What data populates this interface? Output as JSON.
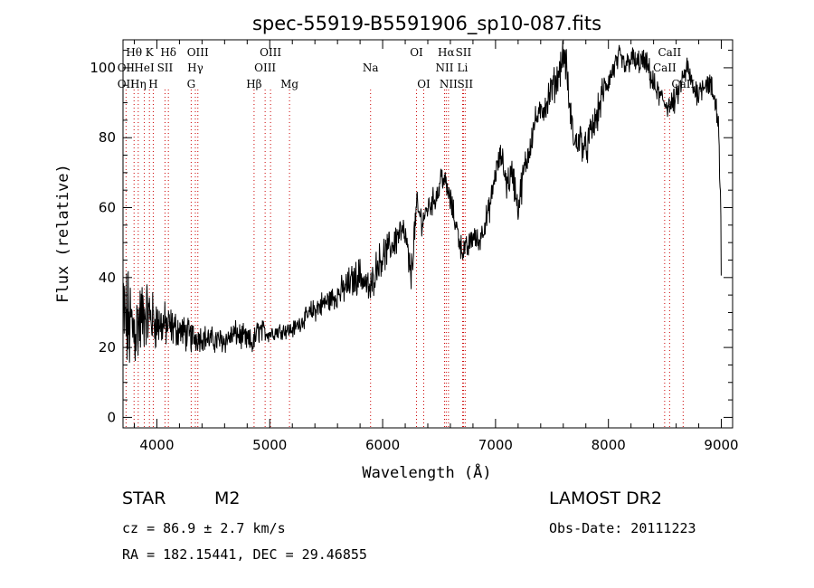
{
  "chart_data": {
    "type": "line",
    "title": "spec-55919-B5591906_sp10-087.fits",
    "xlabel": "Wavelength (Å)",
    "ylabel": "Flux (relative)",
    "xlim": [
      3700,
      9100
    ],
    "ylim": [
      -3,
      108
    ],
    "xticks": [
      4000,
      5000,
      6000,
      7000,
      8000,
      9000
    ],
    "yticks": [
      0,
      20,
      40,
      60,
      80,
      100
    ],
    "grid": false,
    "series": [
      {
        "x": [
          3700,
          3800,
          3900,
          4000,
          4100,
          4200,
          4300,
          4400,
          4500,
          4600,
          4700,
          4800,
          4850,
          4900,
          5000,
          5100,
          5200,
          5300,
          5400,
          5500,
          5600,
          5700,
          5800,
          5890,
          5950,
          6000,
          6100,
          6150,
          6200,
          6250,
          6300,
          6350,
          6400,
          6450,
          6500,
          6520,
          6563,
          6600,
          6650,
          6700,
          6750,
          6800,
          6850,
          6900,
          6950,
          7000,
          7050,
          7100,
          7150,
          7200,
          7250,
          7300,
          7350,
          7400,
          7450,
          7500,
          7550,
          7600,
          7630,
          7650,
          7700,
          7750,
          7800,
          7850,
          7900,
          7950,
          8000,
          8050,
          8100,
          8150,
          8200,
          8250,
          8300,
          8350,
          8400,
          8450,
          8500,
          8550,
          8600,
          8650,
          8700,
          8750,
          8800,
          8850,
          8900,
          8950,
          8980,
          9000
        ],
        "y": [
          28,
          25,
          30,
          27,
          26,
          25,
          23,
          23,
          22,
          22,
          24,
          22,
          21,
          25,
          24,
          25,
          25,
          28,
          31,
          33,
          35,
          38,
          41,
          36,
          44,
          46,
          50,
          53,
          52,
          40,
          60,
          56,
          60,
          62,
          65,
          70,
          66,
          62,
          55,
          48,
          48,
          52,
          50,
          55,
          60,
          70,
          75,
          67,
          70,
          60,
          70,
          77,
          85,
          87,
          90,
          94,
          97,
          104,
          100,
          90,
          78,
          80,
          76,
          82,
          86,
          93,
          96,
          100,
          103,
          100,
          103,
          101,
          102,
          100,
          95,
          92,
          90,
          89,
          91,
          96,
          100,
          94,
          93,
          96,
          95,
          90,
          82,
          45
        ],
        "noise_amplitude": [
          14,
          11,
          8,
          6,
          5,
          4,
          4,
          3,
          3,
          3,
          3,
          3,
          3,
          3,
          2,
          2,
          2,
          2,
          3,
          3,
          3,
          4,
          4,
          4,
          4,
          4,
          4,
          4,
          4,
          4,
          4,
          3,
          3,
          3,
          3,
          3,
          3,
          3,
          3,
          3,
          3,
          3,
          3,
          3,
          3,
          3,
          3,
          4,
          4,
          4,
          4,
          4,
          3,
          3,
          4,
          4,
          4,
          4,
          4,
          4,
          4,
          4,
          4,
          4,
          4,
          4,
          3,
          3,
          3,
          3,
          3,
          3,
          3,
          3,
          3,
          3,
          3,
          3,
          3,
          3,
          3,
          3,
          3,
          3,
          3,
          4,
          5,
          6
        ]
      }
    ],
    "spectral_lines": [
      {
        "label": "Hθ",
        "wave": 3798,
        "row": 0
      },
      {
        "label": "K",
        "wave": 3934,
        "row": 0
      },
      {
        "label": "Hδ",
        "wave": 4102,
        "row": 0
      },
      {
        "label": "OIII",
        "wave": 4363,
        "row": 0
      },
      {
        "label": "OIII",
        "wave": 5007,
        "row": 0
      },
      {
        "label": "OI",
        "wave": 6300,
        "row": 0
      },
      {
        "label": "Hα",
        "wave": 6563,
        "row": 0
      },
      {
        "label": "SII",
        "wave": 6716,
        "row": 0
      },
      {
        "label": "CaII",
        "wave": 8542,
        "row": 0
      },
      {
        "label": "OII",
        "wave": 3727,
        "row": 1
      },
      {
        "label": "HeI",
        "wave": 3889,
        "row": 1
      },
      {
        "label": "SII",
        "wave": 4072,
        "row": 1
      },
      {
        "label": "Hγ",
        "wave": 4341,
        "row": 1
      },
      {
        "label": "OIII",
        "wave": 4959,
        "row": 1
      },
      {
        "label": "Na",
        "wave": 5893,
        "row": 1
      },
      {
        "label": "NII",
        "wave": 6548,
        "row": 1
      },
      {
        "label": "Li",
        "wave": 6708,
        "row": 1
      },
      {
        "label": "CaII",
        "wave": 8498,
        "row": 1
      },
      {
        "label": "OII",
        "wave": 3727,
        "row": 2
      },
      {
        "label": "Hη",
        "wave": 3835,
        "row": 2
      },
      {
        "label": "H",
        "wave": 3968,
        "row": 2
      },
      {
        "label": "G",
        "wave": 4304,
        "row": 2
      },
      {
        "label": "Hβ",
        "wave": 4861,
        "row": 2
      },
      {
        "label": "Mg",
        "wave": 5175,
        "row": 2
      },
      {
        "label": "OI",
        "wave": 6364,
        "row": 2
      },
      {
        "label": "NII",
        "wave": 6583,
        "row": 2
      },
      {
        "label": "SII",
        "wave": 6731,
        "row": 2
      },
      {
        "label": "CaII",
        "wave": 8662,
        "row": 2
      }
    ]
  },
  "info": {
    "object_type": "STAR",
    "subclass": "M2",
    "survey": "LAMOST DR2",
    "cz": "cz = 86.9 ± 2.7 km/s",
    "obs_date": "Obs-Date: 20111223",
    "coords": "RA = 182.15441, DEC =  29.46855"
  },
  "colors": {
    "line": "#000000",
    "marker": "#cc0000",
    "axis": "#000000"
  }
}
